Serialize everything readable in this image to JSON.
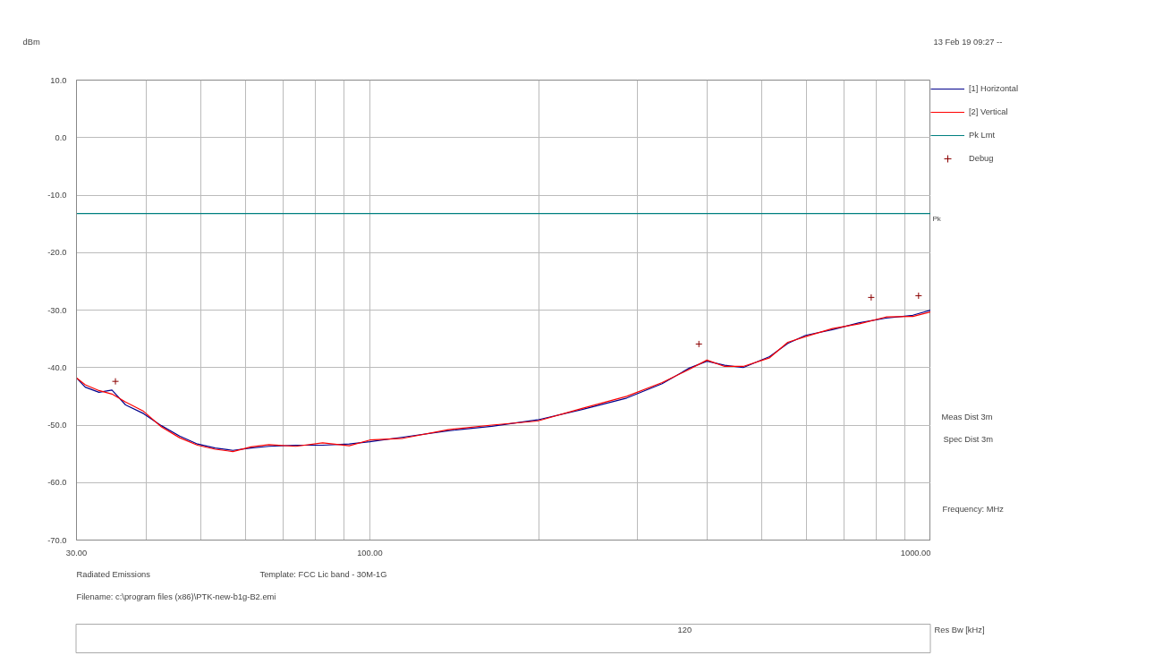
{
  "chart_data": {
    "type": "line",
    "ylabel": "dBm",
    "xlabel": "Frequency: MHz",
    "log": "x",
    "grid": true,
    "legend": "right",
    "marker": "none",
    "line_style": "solid",
    "xlim": [
      30,
      1000
    ],
    "ylim": [
      -70,
      10
    ],
    "xticks": [
      {
        "value": 30,
        "label": "30.00"
      },
      {
        "value": 40,
        "label": null
      },
      {
        "value": 50,
        "label": null
      },
      {
        "value": 60,
        "label": null
      },
      {
        "value": 70,
        "label": null
      },
      {
        "value": 80,
        "label": null
      },
      {
        "value": 90,
        "label": null
      },
      {
        "value": 100,
        "label": "100.00"
      },
      {
        "value": 200,
        "label": null
      },
      {
        "value": 300,
        "label": null
      },
      {
        "value": 400,
        "label": null
      },
      {
        "value": 500,
        "label": null
      },
      {
        "value": 600,
        "label": null
      },
      {
        "value": 700,
        "label": null
      },
      {
        "value": 800,
        "label": null
      },
      {
        "value": 900,
        "label": null
      },
      {
        "value": 1000,
        "label": "1000.00"
      }
    ],
    "yticks": [
      {
        "value": 10,
        "label": "10.0"
      },
      {
        "value": 0,
        "label": "0.0"
      },
      {
        "value": -10,
        "label": "-10.0"
      },
      {
        "value": -20,
        "label": "-20.0"
      },
      {
        "value": -30,
        "label": "-30.0"
      },
      {
        "value": -40,
        "label": "-40.0"
      },
      {
        "value": -50,
        "label": "-50.0"
      },
      {
        "value": -60,
        "label": "-60.0"
      },
      {
        "value": -70,
        "label": "-70.0"
      }
    ],
    "x": [
      30,
      31.1,
      32.9,
      34.7,
      36.7,
      39.5,
      42.5,
      45.8,
      49.3,
      53.0,
      57.0,
      61.4,
      66.1,
      73.8,
      82.4,
      91.9,
      100,
      114.6,
      138,
      165,
      199,
      239,
      287,
      332,
      371,
      399,
      429,
      463,
      516,
      556,
      598,
      668,
      746,
      832,
      929,
      1000
    ],
    "series": [
      {
        "name": "[1] Horizontal",
        "color": "#00008b",
        "values": [
          -41.8,
          -43.4,
          -44.3,
          -43.9,
          -46.5,
          -48.0,
          -50.1,
          -51.9,
          -53.3,
          -54.0,
          -54.4,
          -54.0,
          -53.7,
          -53.5,
          -53.5,
          -53.3,
          -52.9,
          -52.1,
          -51.0,
          -50.2,
          -49.1,
          -47.3,
          -45.3,
          -42.8,
          -40.1,
          -38.9,
          -39.6,
          -40.0,
          -38.1,
          -35.8,
          -34.4,
          -33.4,
          -32.2,
          -31.4,
          -30.9,
          -30.0
        ]
      },
      {
        "name": "[2] Vertical",
        "color": "#ff0000",
        "values": [
          -41.8,
          -43.0,
          -44.0,
          -44.6,
          -46.0,
          -47.6,
          -50.3,
          -52.2,
          -53.5,
          -54.2,
          -54.6,
          -53.8,
          -53.4,
          -53.7,
          -53.1,
          -53.6,
          -52.6,
          -52.3,
          -50.8,
          -50.0,
          -49.3,
          -47.1,
          -45.0,
          -42.6,
          -40.3,
          -38.7,
          -39.8,
          -39.8,
          -38.3,
          -35.6,
          -34.6,
          -33.2,
          -32.4,
          -31.2,
          -31.1,
          -30.3
        ]
      },
      {
        "name": "Pk Lmt",
        "color": "#008080",
        "x": [
          30,
          1000
        ],
        "values": [
          -13.2,
          -13.2
        ]
      },
      {
        "name": "Debug",
        "type": "scatter",
        "marker": "cross",
        "color": "#8b0000",
        "x": [
          35.2,
          386,
          783,
          951
        ],
        "values": [
          -42.4,
          -35.9,
          -27.8,
          -27.5
        ]
      }
    ],
    "annotations": [
      {
        "text": "Pk",
        "x": 1000,
        "y": -13.2
      },
      "13 Feb 19 09:27 --",
      "Meas Dist 3m",
      "Spec Dist 3m",
      "Radiated Emissions",
      "Template: FCC Lic band - 30M-1G",
      "Filename: c:\\program files (x86)\\PTK-new-b1g-B2.emi",
      "120",
      "Res Bw [kHz]"
    ]
  }
}
